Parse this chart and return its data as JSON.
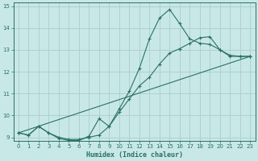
{
  "xlabel": "Humidex (Indice chaleur)",
  "bg_color": "#c8e8e8",
  "grid_color": "#b0d0d0",
  "line_color": "#2a7060",
  "xlim": [
    -0.5,
    23.5
  ],
  "ylim": [
    8.85,
    15.15
  ],
  "xticks": [
    0,
    1,
    2,
    3,
    4,
    5,
    6,
    7,
    8,
    9,
    10,
    11,
    12,
    13,
    14,
    15,
    16,
    17,
    18,
    19,
    20,
    21,
    22,
    23
  ],
  "yticks": [
    9,
    10,
    11,
    12,
    13,
    14,
    15
  ],
  "line1_x": [
    0,
    1,
    2,
    3,
    4,
    5,
    6,
    7,
    8,
    9,
    10,
    11,
    12,
    13,
    14,
    15,
    16,
    17,
    18,
    19,
    20,
    21,
    22,
    23
  ],
  "line1_y": [
    9.2,
    9.1,
    9.5,
    9.2,
    8.95,
    8.85,
    8.85,
    9.05,
    9.85,
    9.5,
    10.3,
    11.1,
    12.15,
    13.5,
    14.45,
    14.85,
    14.2,
    13.5,
    13.3,
    13.25,
    13.0,
    12.7,
    12.7,
    12.7
  ],
  "line2_x": [
    0,
    1,
    2,
    3,
    4,
    5,
    6,
    7,
    8,
    9,
    10,
    11,
    12,
    13,
    14,
    15,
    16,
    17,
    18,
    19,
    20,
    21,
    22,
    23
  ],
  "line2_y": [
    9.2,
    9.1,
    9.5,
    9.2,
    9.0,
    8.9,
    8.9,
    9.0,
    9.1,
    9.5,
    10.15,
    10.75,
    11.35,
    11.75,
    12.35,
    12.85,
    13.05,
    13.3,
    13.55,
    13.6,
    13.0,
    12.75,
    12.7,
    12.7
  ],
  "line3_x": [
    0,
    23
  ],
  "line3_y": [
    9.2,
    12.7
  ]
}
